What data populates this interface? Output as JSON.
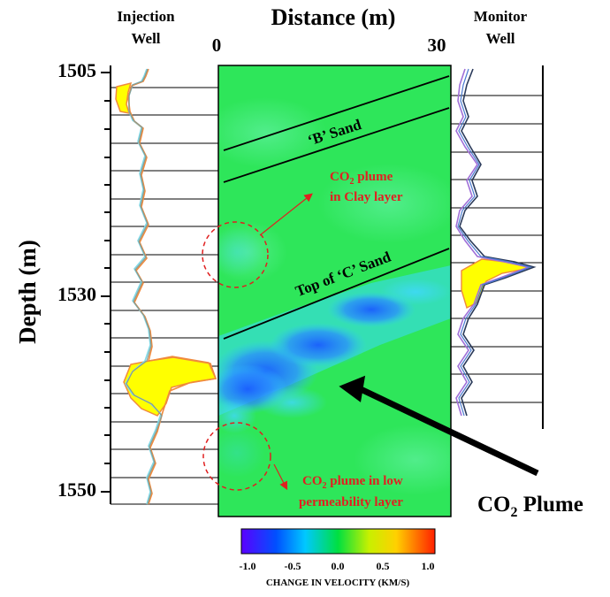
{
  "header": {
    "injection_well_line1": "Injection",
    "injection_well_line2": "Well",
    "distance_title": "Distance (m)",
    "monitor_well_line1": "Monitor",
    "monitor_well_line2": "Well",
    "distance_tick_start": "0",
    "distance_tick_end": "30"
  },
  "depth_axis": {
    "label": "Depth (m)",
    "ticks": [
      "1505",
      "1530",
      "1550"
    ]
  },
  "layers": {
    "b_sand": "‘B’ Sand",
    "top_c_sand": "Top of ‘C’ Sand"
  },
  "annotations": {
    "clay_plume_prefix": "CO",
    "clay_plume_sub": "2",
    "clay_plume_suffix": " plume",
    "clay_plume_line2": "in Clay layer",
    "lowperm_plume_prefix": "CO",
    "lowperm_plume_sub": "2",
    "lowperm_plume_suffix": " plume in low",
    "lowperm_plume_line2": "permeability layer",
    "main_plume_prefix": "CO",
    "main_plume_sub": "2",
    "main_plume_suffix": " Plume"
  },
  "colorbar": {
    "title": "CHANGE IN VELOCITY (KM/S)",
    "ticks": [
      "-1.0",
      "-0.5",
      "0.0",
      "0.5",
      "1.0"
    ]
  },
  "colors": {
    "section_green": "#2ee65a",
    "plume_blue": "#1e90ff",
    "annotation_red": "#e02020",
    "fill_yellow": "#ffff00",
    "curve_orange": "#f08a3c",
    "curve_cyan": "#7fd8e6",
    "curve_purple": "#a070d8",
    "curve_dark": "#2a3a5a"
  }
}
